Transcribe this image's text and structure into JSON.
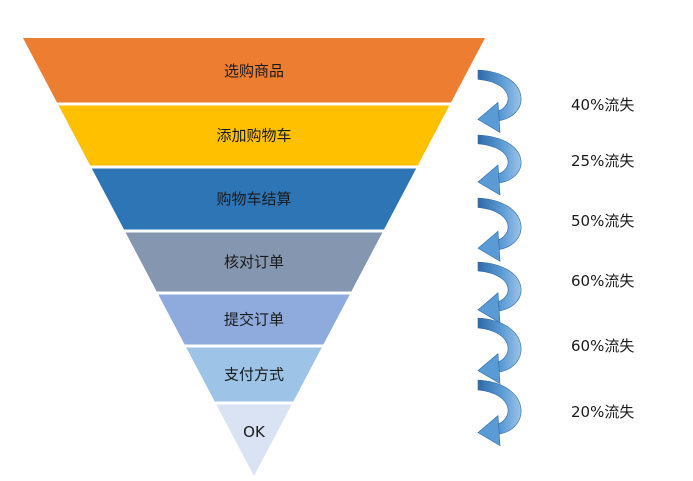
{
  "funnel": {
    "stages": [
      {
        "label": "选购商品",
        "color": "#ED7D31"
      },
      {
        "label": "添加购物车",
        "color": "#FFC000"
      },
      {
        "label": "购物车结算",
        "color": "#2E75B6"
      },
      {
        "label": "核对订单",
        "color": "#8496B0"
      },
      {
        "label": "提交订单",
        "color": "#8FAADC"
      },
      {
        "label": "支付方式",
        "color": "#9DC3E6"
      },
      {
        "label": "OK",
        "color": "#DAE3F3"
      }
    ],
    "losses": [
      {
        "label": "40%流失"
      },
      {
        "label": "25%流失"
      },
      {
        "label": "50%流失"
      },
      {
        "label": "60%流失"
      },
      {
        "label": "60%流失"
      },
      {
        "label": "20%流失"
      }
    ],
    "arrow_color": "#5B9BD5"
  }
}
